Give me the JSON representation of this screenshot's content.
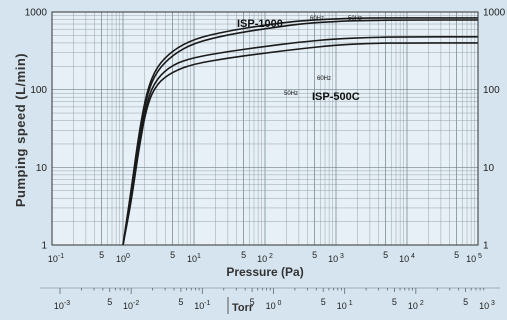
{
  "chart_data": {
    "type": "line",
    "xlabel": "Pressure (Pa)",
    "ylabel": "Pumping speed (L/min)",
    "secondary_xlabel": "Torr",
    "x_scale": "log",
    "y_scale": "log",
    "xlim": [
      0.1,
      100000
    ],
    "ylim": [
      1,
      1000
    ],
    "grid": true,
    "x_tick_labels": [
      {
        "v": 0.1,
        "base": "10",
        "exp": "-1"
      },
      {
        "v": 0.5,
        "base": "5",
        "exp": ""
      },
      {
        "v": 1,
        "base": "10",
        "exp": "0"
      },
      {
        "v": 5,
        "base": "5",
        "exp": ""
      },
      {
        "v": 10,
        "base": "10",
        "exp": "1"
      },
      {
        "v": 50,
        "base": "5",
        "exp": ""
      },
      {
        "v": 100,
        "base": "10",
        "exp": " 2"
      },
      {
        "v": 500,
        "base": "5",
        "exp": ""
      },
      {
        "v": 1000,
        "base": "10",
        "exp": " 3"
      },
      {
        "v": 5000,
        "base": "5",
        "exp": ""
      },
      {
        "v": 10000,
        "base": "10",
        "exp": " 4"
      },
      {
        "v": 50000,
        "base": "5",
        "exp": ""
      },
      {
        "v": 100000,
        "base": "10",
        "exp": " 5"
      }
    ],
    "torr_tick_labels": [
      {
        "v": 0.001,
        "base": "10",
        "exp": "-3"
      },
      {
        "v": 0.005,
        "base": "5",
        "exp": ""
      },
      {
        "v": 0.01,
        "base": "10",
        "exp": "-2"
      },
      {
        "v": 0.05,
        "base": "5",
        "exp": ""
      },
      {
        "v": 0.1,
        "base": "10",
        "exp": "-1"
      },
      {
        "v": 0.5,
        "base": "5",
        "exp": ""
      },
      {
        "v": 1,
        "base": "10",
        "exp": " 0"
      },
      {
        "v": 5,
        "base": "5",
        "exp": ""
      },
      {
        "v": 10,
        "base": "10",
        "exp": " 1"
      },
      {
        "v": 50,
        "base": "5",
        "exp": ""
      },
      {
        "v": 100,
        "base": "10",
        "exp": " 2"
      },
      {
        "v": 500,
        "base": "5",
        "exp": ""
      },
      {
        "v": 1000,
        "base": "10",
        "exp": " 3"
      }
    ],
    "y_tick_labels": [
      {
        "v": 1,
        "text": "1"
      },
      {
        "v": 10,
        "text": "10"
      },
      {
        "v": 100,
        "text": "100"
      },
      {
        "v": 1000,
        "text": "1000"
      }
    ],
    "series": [
      {
        "name": "ISP-1000",
        "freq_label": "60Hz",
        "x": [
          1.0,
          1.3,
          1.7,
          2.2,
          3,
          5,
          10,
          30,
          100,
          300,
          1000,
          3000,
          10000,
          100000
        ],
        "y": [
          1,
          5,
          30,
          100,
          200,
          320,
          450,
          570,
          680,
          770,
          820,
          840,
          840,
          840
        ]
      },
      {
        "name": "ISP-1000",
        "freq_label": "50Hz",
        "x": [
          1.0,
          1.3,
          1.7,
          2.2,
          3,
          5,
          10,
          30,
          100,
          300,
          1000,
          3000,
          10000,
          100000
        ],
        "y": [
          1,
          4.5,
          27,
          90,
          175,
          280,
          400,
          510,
          610,
          700,
          760,
          780,
          790,
          790
        ]
      },
      {
        "name": "ISP-500C",
        "freq_label": "60Hz",
        "x": [
          1.0,
          1.3,
          1.7,
          2.2,
          3,
          5,
          10,
          30,
          100,
          300,
          1000,
          3000,
          10000,
          100000
        ],
        "y": [
          1,
          4,
          22,
          75,
          140,
          210,
          260,
          310,
          360,
          410,
          450,
          470,
          480,
          480
        ]
      },
      {
        "name": "ISP-500C",
        "freq_label": "50Hz",
        "x": [
          1.0,
          1.3,
          1.7,
          2.2,
          3,
          5,
          10,
          30,
          100,
          300,
          1000,
          3000,
          10000,
          100000
        ],
        "y": [
          1,
          3.5,
          19,
          65,
          120,
          170,
          215,
          255,
          295,
          335,
          375,
          395,
          400,
          400
        ]
      }
    ],
    "annotations": [
      {
        "text": "ISP-1000",
        "bold": true
      },
      {
        "text": "60Hz",
        "bold": false
      },
      {
        "text": "50Hz",
        "bold": false
      },
      {
        "text": "60Hz",
        "bold": false
      },
      {
        "text": "50Hz",
        "bold": false
      },
      {
        "text": "ISP-500C",
        "bold": true
      }
    ],
    "colors": {
      "background": "#d5e4ee",
      "plot_background": "#e6f0f6",
      "curve": "#1a1a1a",
      "grid": "#7d8c95"
    }
  }
}
